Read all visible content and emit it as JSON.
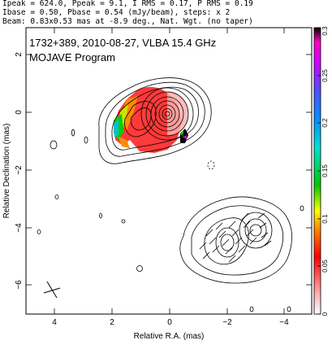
{
  "header": {
    "line1": "Ipeak = 624.0, Ppeak = 9.1, I RMS = 0.17, P RMS = 0.19",
    "line2": "Ibase = 0.50, Pbase = 0.54 (mJy/beam), steps: x 2",
    "line3": "Beam: 0.83x0.53 mas at -8.9 deg., Nat. Wgt. (no taper)"
  },
  "plot": {
    "title": "1732+389, 2010-08-27, VLBA 15.4 GHz",
    "subtitle": "MOJAVE Program",
    "xlabel": "Relative R.A. (mas)",
    "ylabel": "Relative Declination (mas)",
    "xlim": [
      5,
      -5
    ],
    "ylim": [
      -7,
      3
    ],
    "xticks": [
      "4",
      "2",
      "0",
      "−2",
      "−4"
    ],
    "yticks": [
      "2",
      "0",
      "−2",
      "−4",
      "−6"
    ]
  },
  "colorbar": {
    "range": [
      0,
      0.3
    ],
    "ticks": [
      "0",
      "0.05",
      "0.1",
      "0.15",
      "0.2",
      "0.25",
      "0.3"
    ]
  }
}
